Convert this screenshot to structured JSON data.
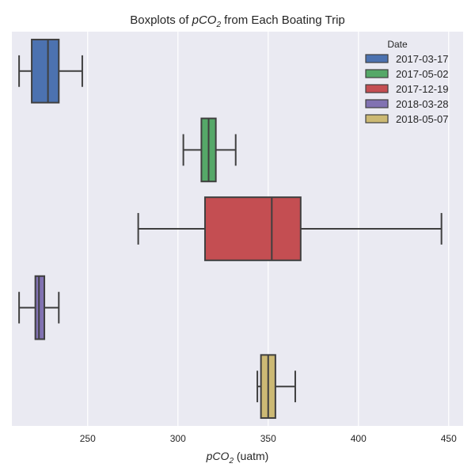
{
  "chart_data": {
    "type": "boxplot",
    "orientation": "horizontal",
    "title_prefix": "Boxplots of ",
    "title_var": "pCO",
    "title_sub": "2",
    "title_suffix": " from Each Boating Trip",
    "xlabel_var": "pCO",
    "xlabel_sub": "2",
    "xlabel_suffix": " (uatm)",
    "ylabel": "",
    "xlim": [
      208,
      458
    ],
    "xticks": [
      250,
      300,
      350,
      400,
      450
    ],
    "grid": true,
    "legend_title": "Date",
    "legend_position": "top-right",
    "series": [
      {
        "name": "2017-03-17",
        "color": "#4c72b0",
        "whisker_low": 212,
        "q1": 219,
        "median": 228,
        "q3": 234,
        "whisker_high": 247
      },
      {
        "name": "2017-05-02",
        "color": "#55a868",
        "whisker_low": 303,
        "q1": 313,
        "median": 317,
        "q3": 321,
        "whisker_high": 332
      },
      {
        "name": "2017-12-19",
        "color": "#c44e52",
        "whisker_low": 278,
        "q1": 315,
        "median": 352,
        "q3": 368,
        "whisker_high": 446
      },
      {
        "name": "2018-03-28",
        "color": "#8172b2",
        "whisker_low": 212,
        "q1": 221,
        "median": 223,
        "q3": 226,
        "whisker_high": 234
      },
      {
        "name": "2018-05-07",
        "color": "#ccb974",
        "whisker_low": 344,
        "q1": 346,
        "median": 350,
        "q3": 354,
        "whisker_high": 365
      }
    ]
  }
}
